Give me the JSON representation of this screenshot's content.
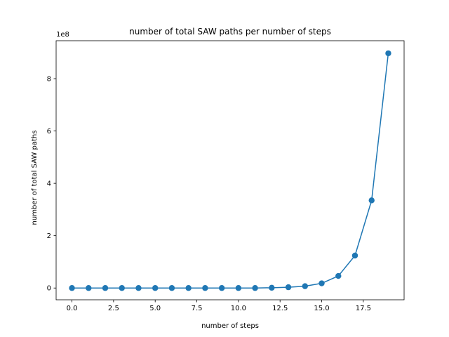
{
  "chart_data": {
    "type": "line",
    "title": "number of total SAW paths per number of steps",
    "xlabel": "number of steps",
    "ylabel": "number of total SAW paths",
    "y_offset_label": "1e8",
    "xlim": [
      -0.95,
      19.95
    ],
    "ylim": [
      -0.45,
      9.45
    ],
    "y_scale_note": "values in units of 1e8",
    "grid": false,
    "legend": "none",
    "series": [
      {
        "color": "#1f77b4",
        "marker": "circle",
        "x": [
          0,
          1,
          2,
          3,
          4,
          5,
          6,
          7,
          8,
          9,
          10,
          11,
          12,
          13,
          14,
          15,
          16,
          17,
          18,
          19
        ],
        "y": [
          0.0,
          0.0,
          0.0,
          0.0,
          0.0,
          0.0,
          0.0,
          0.0,
          0.0,
          0.0,
          0.0,
          0.0,
          0.01,
          0.03,
          0.07,
          0.18,
          0.46,
          1.24,
          3.35,
          8.97
        ]
      }
    ],
    "x_ticks": [
      0.0,
      2.5,
      5.0,
      7.5,
      10.0,
      12.5,
      15.0,
      17.5
    ],
    "x_tick_labels": [
      "0.0",
      "2.5",
      "5.0",
      "7.5",
      "10.0",
      "12.5",
      "15.0",
      "17.5"
    ],
    "y_ticks": [
      0,
      2,
      4,
      6,
      8
    ],
    "y_tick_labels": [
      "0",
      "2",
      "4",
      "6",
      "8"
    ]
  }
}
